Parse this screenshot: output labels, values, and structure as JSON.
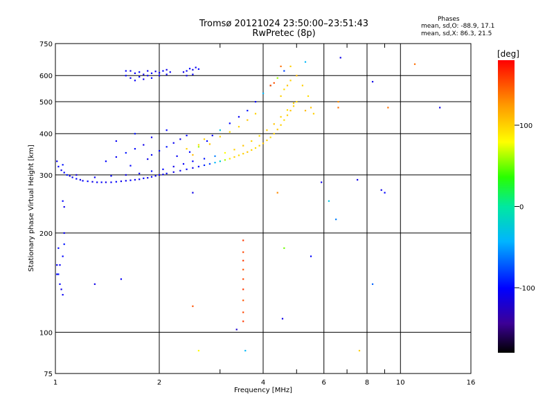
{
  "title_line1": "Tromsø 20121024 23:50:00–23:51:43",
  "title_line2": "RwPretec (8p)",
  "phase_header": "Phases",
  "phase_line1": "mean, sd,O: -88.9, 17.1",
  "phase_line2": "mean, sd,X:  86.3, 21.5",
  "colorbar": {
    "label": "[deg]",
    "ticks": [
      {
        "v": 100,
        "t": "100"
      },
      {
        "v": 0,
        "t": "0"
      },
      {
        "v": -100,
        "t": "-100"
      }
    ],
    "range": [
      -180,
      180
    ]
  },
  "chart_data": {
    "type": "scatter",
    "xlabel": "Frequency [MHz]",
    "ylabel": "Stationary phase Virtual Height [km]",
    "x_scale": "log",
    "y_scale": "log",
    "xlim": [
      1,
      16
    ],
    "ylim": [
      75,
      750
    ],
    "grid": true,
    "x_ticks": [
      {
        "v": 1,
        "t": "1"
      },
      {
        "v": 2,
        "t": "2"
      },
      {
        "v": 4,
        "t": "4"
      },
      {
        "v": 6,
        "t": "6"
      },
      {
        "v": 8,
        "t": "8"
      },
      {
        "v": 10,
        "t": "10"
      },
      {
        "v": 16,
        "t": "16"
      }
    ],
    "y_ticks": [
      {
        "v": 75,
        "t": "75"
      },
      {
        "v": 100,
        "t": "100"
      },
      {
        "v": 200,
        "t": "200"
      },
      {
        "v": 300,
        "t": "300"
      },
      {
        "v": 400,
        "t": "400"
      },
      {
        "v": 500,
        "t": "500"
      },
      {
        "v": 600,
        "t": "600"
      },
      {
        "v": 750,
        "t": "750"
      }
    ],
    "x_minor": [
      3,
      5,
      7,
      9
    ],
    "points": [
      [
        1.01,
        330,
        -105
      ],
      [
        1.02,
        318,
        -100
      ],
      [
        1.04,
        310,
        -110
      ],
      [
        1.06,
        305,
        -100
      ],
      [
        1.08,
        300,
        -95
      ],
      [
        1.1,
        298,
        -110
      ],
      [
        1.12,
        295,
        -105
      ],
      [
        1.15,
        292,
        -100
      ],
      [
        1.18,
        290,
        -110
      ],
      [
        1.2,
        288,
        -105
      ],
      [
        1.24,
        287,
        -100
      ],
      [
        1.28,
        286,
        -110
      ],
      [
        1.32,
        285,
        -105
      ],
      [
        1.36,
        285,
        -100
      ],
      [
        1.4,
        285,
        -110
      ],
      [
        1.45,
        285,
        -105
      ],
      [
        1.5,
        286,
        -100
      ],
      [
        1.55,
        287,
        -110
      ],
      [
        1.6,
        288,
        -105
      ],
      [
        1.65,
        289,
        -100
      ],
      [
        1.7,
        290,
        -110
      ],
      [
        1.75,
        291,
        -105
      ],
      [
        1.8,
        293,
        -100
      ],
      [
        1.85,
        294,
        -110
      ],
      [
        1.9,
        296,
        -105
      ],
      [
        1.95,
        298,
        -100
      ],
      [
        2.0,
        300,
        -110
      ],
      [
        2.05,
        301,
        -105
      ],
      [
        2.1,
        303,
        -100
      ],
      [
        2.2,
        306,
        -110
      ],
      [
        2.3,
        309,
        -105
      ],
      [
        2.4,
        312,
        -100
      ],
      [
        2.5,
        315,
        -110
      ],
      [
        2.6,
        318,
        -100
      ],
      [
        2.7,
        321,
        -90
      ],
      [
        2.8,
        324,
        -80
      ],
      [
        2.9,
        327,
        -40
      ],
      [
        3.0,
        330,
        -20
      ],
      [
        3.1,
        333,
        60
      ],
      [
        3.2,
        336,
        90
      ],
      [
        3.3,
        340,
        100
      ],
      [
        3.4,
        344,
        95
      ],
      [
        3.5,
        348,
        100
      ],
      [
        3.6,
        352,
        105
      ],
      [
        3.7,
        357,
        100
      ],
      [
        3.8,
        362,
        95
      ],
      [
        3.9,
        368,
        100
      ],
      [
        4.0,
        374,
        105
      ],
      [
        4.1,
        382,
        100
      ],
      [
        4.2,
        390,
        95
      ],
      [
        4.3,
        400,
        100
      ],
      [
        4.4,
        412,
        105
      ],
      [
        4.5,
        425,
        100
      ],
      [
        4.6,
        440,
        95
      ],
      [
        4.7,
        455,
        100
      ],
      [
        4.8,
        470,
        105
      ],
      [
        4.9,
        485,
        100
      ],
      [
        5.0,
        500,
        95
      ],
      [
        1.05,
        322,
        -95
      ],
      [
        1.15,
        300,
        -115
      ],
      [
        1.3,
        295,
        -105
      ],
      [
        1.45,
        298,
        -100
      ],
      [
        1.6,
        300,
        -110
      ],
      [
        1.75,
        303,
        -105
      ],
      [
        1.9,
        308,
        -95
      ],
      [
        2.05,
        312,
        -100
      ],
      [
        2.2,
        318,
        -110
      ],
      [
        2.35,
        324,
        -105
      ],
      [
        2.5,
        330,
        -100
      ],
      [
        2.7,
        336,
        -95
      ],
      [
        2.9,
        342,
        -60
      ],
      [
        3.1,
        350,
        80
      ],
      [
        3.3,
        358,
        100
      ],
      [
        3.5,
        368,
        105
      ],
      [
        3.7,
        380,
        100
      ],
      [
        3.9,
        394,
        95
      ],
      [
        4.1,
        410,
        100
      ],
      [
        4.3,
        428,
        105
      ],
      [
        4.5,
        450,
        100
      ],
      [
        4.7,
        472,
        95
      ],
      [
        4.9,
        495,
        100
      ],
      [
        1.4,
        330,
        -100
      ],
      [
        1.5,
        340,
        -105
      ],
      [
        1.6,
        350,
        -95
      ],
      [
        1.7,
        360,
        -100
      ],
      [
        1.8,
        370,
        -110
      ],
      [
        1.9,
        345,
        -105
      ],
      [
        2.0,
        355,
        -100
      ],
      [
        2.1,
        365,
        -95
      ],
      [
        2.2,
        375,
        -105
      ],
      [
        2.3,
        385,
        -110
      ],
      [
        2.4,
        395,
        -100
      ],
      [
        1.5,
        380,
        -105
      ],
      [
        1.7,
        400,
        -95
      ],
      [
        1.9,
        390,
        -110
      ],
      [
        2.1,
        410,
        -100
      ],
      [
        1.65,
        320,
        -100
      ],
      [
        1.85,
        335,
        -110
      ],
      [
        2.25,
        342,
        -105
      ],
      [
        2.45,
        352,
        -100
      ],
      [
        2.6,
        365,
        60
      ],
      [
        2.75,
        380,
        -100
      ],
      [
        2.85,
        395,
        -105
      ],
      [
        3.0,
        410,
        -30
      ],
      [
        3.2,
        430,
        -100
      ],
      [
        3.4,
        450,
        -105
      ],
      [
        3.6,
        470,
        -95
      ],
      [
        3.8,
        500,
        -100
      ],
      [
        4.0,
        530,
        -40
      ],
      [
        4.2,
        560,
        20
      ],
      [
        4.4,
        590,
        60
      ],
      [
        4.6,
        620,
        -80
      ],
      [
        2.4,
        360,
        100
      ],
      [
        2.5,
        345,
        110
      ],
      [
        2.6,
        370,
        95
      ],
      [
        2.7,
        385,
        100
      ],
      [
        2.8,
        372,
        105
      ],
      [
        3.0,
        392,
        100
      ],
      [
        3.2,
        405,
        95
      ],
      [
        3.4,
        420,
        100
      ],
      [
        3.6,
        440,
        105
      ],
      [
        3.8,
        460,
        100
      ],
      [
        4.5,
        520,
        100
      ],
      [
        4.6,
        545,
        95
      ],
      [
        4.7,
        560,
        105
      ],
      [
        4.8,
        580,
        100
      ],
      [
        5.0,
        600,
        110
      ],
      [
        5.2,
        560,
        100
      ],
      [
        5.4,
        520,
        95
      ],
      [
        5.5,
        480,
        105
      ],
      [
        5.6,
        460,
        100
      ],
      [
        5.3,
        470,
        110
      ],
      [
        1.65,
        620,
        -110
      ],
      [
        1.7,
        610,
        -105
      ],
      [
        1.75,
        615,
        -100
      ],
      [
        1.8,
        605,
        -110
      ],
      [
        1.85,
        620,
        -105
      ],
      [
        1.9,
        610,
        -100
      ],
      [
        1.95,
        618,
        -110
      ],
      [
        2.0,
        612,
        -105
      ],
      [
        2.05,
        620,
        -100
      ],
      [
        2.1,
        625,
        -110
      ],
      [
        2.15,
        615,
        -105
      ],
      [
        1.6,
        600,
        -100
      ],
      [
        1.65,
        590,
        -110
      ],
      [
        1.7,
        580,
        -105
      ],
      [
        1.75,
        595,
        -100
      ],
      [
        1.8,
        585,
        -110
      ],
      [
        1.85,
        600,
        -105
      ],
      [
        1.9,
        590,
        -100
      ],
      [
        2.0,
        600,
        -110
      ],
      [
        2.1,
        605,
        -105
      ],
      [
        1.6,
        620,
        -100
      ],
      [
        2.35,
        615,
        -110
      ],
      [
        2.4,
        620,
        -105
      ],
      [
        2.45,
        630,
        -100
      ],
      [
        2.5,
        625,
        -110
      ],
      [
        2.55,
        635,
        -105
      ],
      [
        2.6,
        628,
        -100
      ],
      [
        2.4,
        600,
        -110
      ],
      [
        2.5,
        605,
        -105
      ],
      [
        1.02,
        180,
        -100
      ],
      [
        1.03,
        160,
        -105
      ],
      [
        1.02,
        150,
        -95
      ],
      [
        1.03,
        140,
        -100
      ],
      [
        1.04,
        135,
        -110
      ],
      [
        1.05,
        130,
        -105
      ],
      [
        1.05,
        170,
        -100
      ],
      [
        1.06,
        185,
        -95
      ],
      [
        1.06,
        200,
        -105
      ],
      [
        1.06,
        240,
        -110
      ],
      [
        1.05,
        250,
        -100
      ],
      [
        1.01,
        160,
        -105
      ],
      [
        1.01,
        150,
        -100
      ],
      [
        1.3,
        140,
        -110
      ],
      [
        1.55,
        145,
        -105
      ],
      [
        2.6,
        88,
        80
      ],
      [
        2.5,
        120,
        150
      ],
      [
        3.35,
        102,
        -120
      ],
      [
        3.5,
        190,
        160
      ],
      [
        3.5,
        175,
        155
      ],
      [
        3.5,
        165,
        160
      ],
      [
        3.5,
        155,
        150
      ],
      [
        3.5,
        145,
        155
      ],
      [
        3.5,
        135,
        160
      ],
      [
        3.5,
        125,
        150
      ],
      [
        3.5,
        115,
        155
      ],
      [
        3.5,
        108,
        160
      ],
      [
        3.55,
        88,
        -40
      ],
      [
        4.55,
        110,
        -110
      ],
      [
        4.6,
        180,
        50
      ],
      [
        5.5,
        170,
        -100
      ],
      [
        5.9,
        285,
        -110
      ],
      [
        6.2,
        250,
        -30
      ],
      [
        6.5,
        220,
        -60
      ],
      [
        7.5,
        290,
        -110
      ],
      [
        8.3,
        140,
        -70
      ],
      [
        8.8,
        270,
        -110
      ],
      [
        9.0,
        265,
        -100
      ],
      [
        7.6,
        88,
        100
      ],
      [
        4.4,
        265,
        130
      ],
      [
        5.3,
        660,
        -40
      ],
      [
        6.7,
        680,
        -110
      ],
      [
        8.3,
        575,
        -110
      ],
      [
        11.0,
        650,
        140
      ],
      [
        13.0,
        480,
        -110
      ],
      [
        6.6,
        480,
        140
      ],
      [
        6.6,
        500,
        130
      ],
      [
        9.2,
        480,
        140
      ],
      [
        2.5,
        265,
        -110
      ],
      [
        4.5,
        640,
        140
      ],
      [
        4.3,
        570,
        150
      ],
      [
        4.2,
        560,
        160
      ],
      [
        4.8,
        640,
        100
      ]
    ]
  }
}
